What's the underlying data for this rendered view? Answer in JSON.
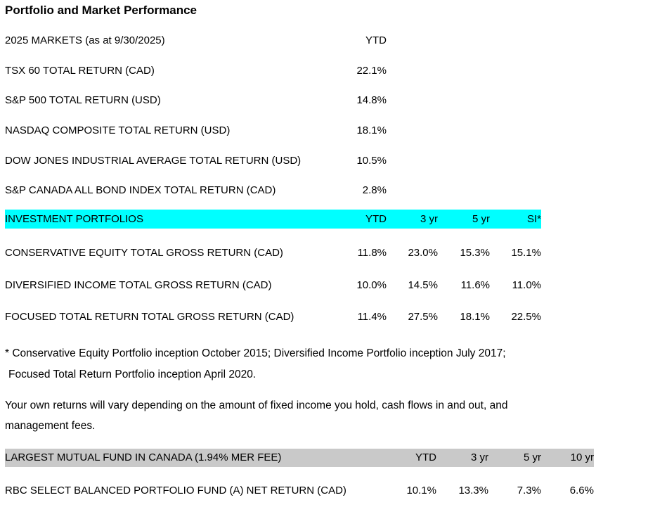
{
  "title": "Portfolio and Market Performance",
  "colors": {
    "portfolio_header_highlight": "#00FFFF",
    "fund_header_highlight": "#C9C9C9",
    "text": "#000000",
    "background": "#FFFFFF"
  },
  "markets": {
    "header": {
      "label": "2025 MARKETS (as at 9/30/2025)",
      "ytd": "YTD"
    },
    "rows": [
      {
        "label": "TSX 60 TOTAL RETURN (CAD)",
        "ytd": "22.1%"
      },
      {
        "label": "S&P 500 TOTAL RETURN (USD)",
        "ytd": "14.8%"
      },
      {
        "label": "NASDAQ COMPOSITE TOTAL RETURN (USD)",
        "ytd": "18.1%"
      },
      {
        "label": "DOW JONES INDUSTRIAL AVERAGE TOTAL RETURN (USD)",
        "ytd": "10.5%"
      },
      {
        "label": "S&P CANADA ALL BOND INDEX TOTAL RETURN (CAD)",
        "ytd": "2.8%"
      }
    ]
  },
  "portfolios": {
    "header": {
      "label": "INVESTMENT PORTFOLIOS",
      "cols": [
        "YTD",
        "3 yr",
        "5 yr",
        "SI*"
      ]
    },
    "rows": [
      {
        "label": "CONSERVATIVE EQUITY TOTAL GROSS RETURN (CAD)",
        "values": [
          "11.8%",
          "23.0%",
          "15.3%",
          "15.1%"
        ]
      },
      {
        "label": "DIVERSIFIED INCOME TOTAL GROSS RETURN (CAD)",
        "values": [
          "10.0%",
          "14.5%",
          "11.6%",
          "11.0%"
        ]
      },
      {
        "label": "FOCUSED TOTAL RETURN TOTAL GROSS RETURN (CAD)",
        "values": [
          "11.4%",
          "27.5%",
          "18.1%",
          "22.5%"
        ]
      }
    ]
  },
  "footnote": {
    "line1": "* Conservative Equity Portfolio inception October 2015; Diversified Income Portfolio inception July 2017;",
    "line2": "Focused Total Return Portfolio inception April 2020."
  },
  "disclaimer": {
    "line1": "Your own returns will vary depending on the amount of fixed income you hold, cash flows in and out, and",
    "line2": "management fees."
  },
  "mutual_fund": {
    "header": {
      "label": "LARGEST MUTUAL FUND IN CANADA (1.94% MER FEE)",
      "cols": [
        "YTD",
        "3 yr",
        "5 yr",
        "10 yr"
      ]
    },
    "rows": [
      {
        "label": "RBC SELECT BALANCED PORTFOLIO FUND (A) NET RETURN (CAD)",
        "values": [
          "10.1%",
          "13.3%",
          "7.3%",
          "6.6%"
        ]
      }
    ]
  }
}
